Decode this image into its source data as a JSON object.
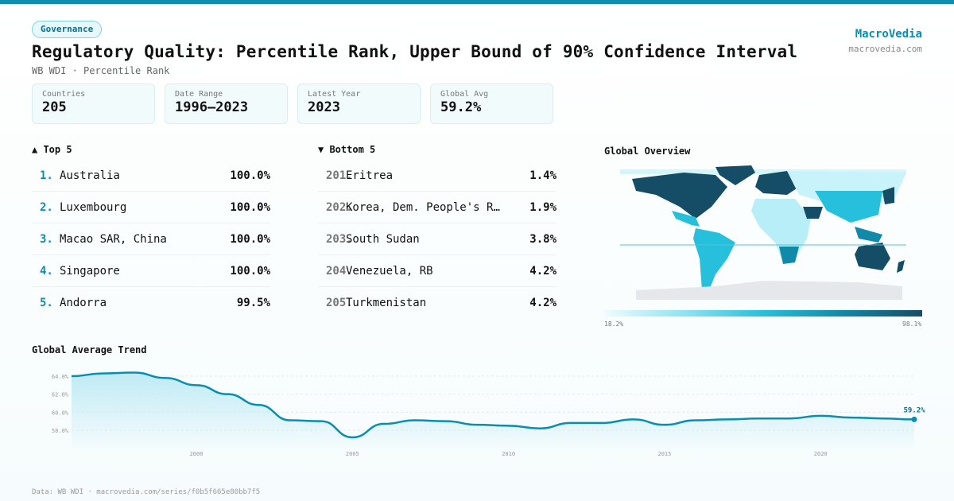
{
  "header": {
    "category": "Governance",
    "title": "Regulatory Quality: Percentile Rank, Upper Bound of 90% Confidence Interval",
    "subtitle": "WB WDI · Percentile Rank",
    "brand": "MacroVedia",
    "brand_url": "macrovedia.com"
  },
  "stats": [
    {
      "label": "Countries",
      "value": "205"
    },
    {
      "label": "Date Range",
      "value": "1996–2023"
    },
    {
      "label": "Latest Year",
      "value": "2023"
    },
    {
      "label": "Global Avg",
      "value": "59.2%"
    }
  ],
  "top5": {
    "heading": "▲ Top 5",
    "items": [
      {
        "rank": "1.",
        "name": "Australia",
        "value": "100.0%"
      },
      {
        "rank": "2.",
        "name": "Luxembourg",
        "value": "100.0%"
      },
      {
        "rank": "3.",
        "name": "Macao SAR, China",
        "value": "100.0%"
      },
      {
        "rank": "4.",
        "name": "Singapore",
        "value": "100.0%"
      },
      {
        "rank": "5.",
        "name": "Andorra",
        "value": "99.5%"
      }
    ]
  },
  "bottom5": {
    "heading": "▼ Bottom 5",
    "items": [
      {
        "rank": "201.",
        "name": "Eritrea",
        "value": "1.4%"
      },
      {
        "rank": "202.",
        "name": "Korea, Dem. People's Rep.",
        "value": "1.9%"
      },
      {
        "rank": "203.",
        "name": "South Sudan",
        "value": "3.8%"
      },
      {
        "rank": "204.",
        "name": "Venezuela, RB",
        "value": "4.2%"
      },
      {
        "rank": "205.",
        "name": "Turkmenistan",
        "value": "4.2%"
      }
    ]
  },
  "map": {
    "heading": "Global Overview",
    "legend_min": "18.2%",
    "legend_max": "98.1%",
    "colors": [
      "#effcfe",
      "#8fe3f3",
      "#26c0dc",
      "#1189a9",
      "#164d66"
    ]
  },
  "chart_data": {
    "type": "area",
    "title": "Global Average Trend",
    "x": [
      1996,
      1997,
      1998,
      1999,
      2000,
      2001,
      2002,
      2003,
      2004,
      2005,
      2006,
      2007,
      2008,
      2009,
      2010,
      2011,
      2012,
      2013,
      2014,
      2015,
      2016,
      2017,
      2018,
      2019,
      2020,
      2021,
      2022,
      2023
    ],
    "values": [
      64.0,
      64.3,
      64.4,
      63.8,
      63.0,
      62.0,
      60.8,
      59.1,
      59.0,
      57.2,
      58.7,
      59.1,
      59.0,
      58.6,
      58.5,
      58.2,
      58.8,
      58.8,
      59.2,
      58.6,
      59.1,
      59.2,
      59.3,
      59.3,
      59.6,
      59.4,
      59.3,
      59.2
    ],
    "yticks": [
      "58.0%",
      "60.0%",
      "62.0%",
      "64.0%"
    ],
    "xticks": [
      "2000",
      "2005",
      "2010",
      "2015",
      "2020"
    ],
    "last_label": "59.2%",
    "grid": true,
    "color": "#0a8db3"
  },
  "footer": "Data: WB WDI · macrovedia.com/series/f0b5f665e80bb7f5"
}
